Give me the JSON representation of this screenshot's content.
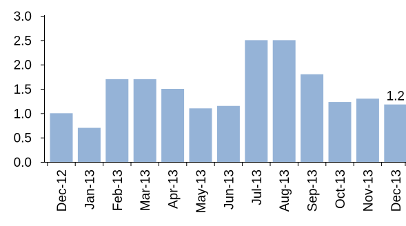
{
  "chart_data": {
    "type": "bar",
    "categories": [
      "Dec-12",
      "Jan-13",
      "Feb-13",
      "Mar-13",
      "Apr-13",
      "May-13",
      "Jun-13",
      "Jul-13",
      "Aug-13",
      "Sep-13",
      "Oct-13",
      "Nov-13",
      "Dec-13"
    ],
    "values": [
      1.0,
      0.7,
      1.7,
      1.7,
      1.5,
      1.1,
      1.15,
      2.5,
      2.5,
      1.8,
      1.23,
      1.3,
      1.18
    ],
    "ylim": [
      0,
      3.0
    ],
    "yticks": [
      "0.0",
      "0.5",
      "1.0",
      "1.5",
      "2.0",
      "2.5",
      "3.0"
    ],
    "data_labels": [
      {
        "index": 12,
        "text": "1.2"
      }
    ],
    "bar_color": "#95b3d7",
    "grid": false,
    "legend": "none",
    "title": "",
    "xlabel": "",
    "ylabel": ""
  }
}
